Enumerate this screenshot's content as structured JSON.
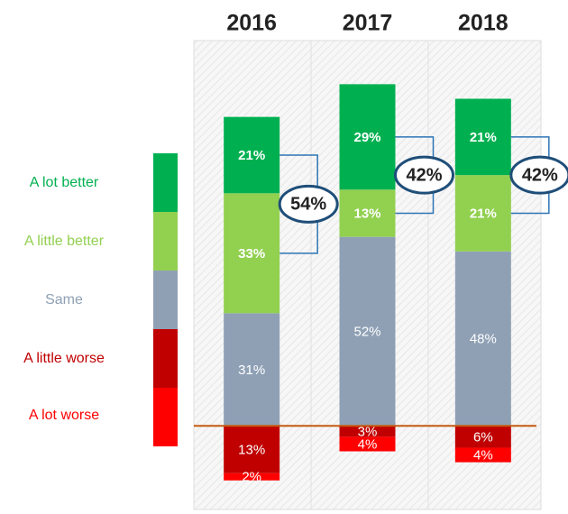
{
  "chart_data": {
    "type": "diverging-stacked-bar",
    "categories": [
      "2016",
      "2017",
      "2018"
    ],
    "series": [
      {
        "name": "A lot better",
        "color": "#00b050",
        "values": [
          21,
          29,
          21
        ],
        "value_labels": [
          "21%",
          "29%",
          "21%"
        ]
      },
      {
        "name": "A little better",
        "color": "#92d050",
        "values": [
          33,
          13,
          21
        ],
        "value_labels": [
          "33%",
          "13%",
          "21%"
        ]
      },
      {
        "name": "Same",
        "color": "#8fa0b5",
        "values": [
          31,
          52,
          48
        ],
        "value_labels": [
          "31%",
          "52%",
          "48%"
        ]
      },
      {
        "name": "A little worse",
        "color": "#c00000",
        "values": [
          13,
          3,
          6
        ],
        "value_labels": [
          "13%",
          "3%",
          "6%"
        ]
      },
      {
        "name": "A lot worse",
        "color": "#ff0000",
        "values": [
          2,
          4,
          4
        ],
        "value_labels": [
          "2%",
          "4%",
          "4%"
        ]
      }
    ],
    "better_totals": {
      "values": [
        54,
        42,
        42
      ],
      "value_labels": [
        "54%",
        "42%",
        "42%"
      ]
    },
    "ylim": [
      -23,
      106
    ]
  }
}
